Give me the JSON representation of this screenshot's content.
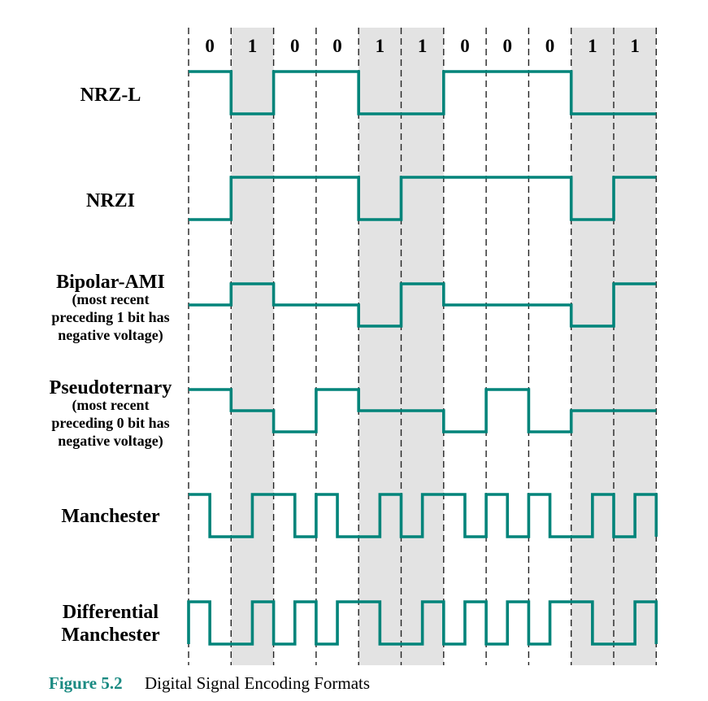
{
  "bits": [
    "0",
    "1",
    "0",
    "0",
    "1",
    "1",
    "0",
    "0",
    "0",
    "1",
    "1"
  ],
  "colors": {
    "wave": "#00847a",
    "band": "#e3e3e3",
    "caption_accent": "#1a8a82"
  },
  "rows": [
    {
      "id": "nrz-l",
      "label": "NRZ-L",
      "sub": []
    },
    {
      "id": "nrzi",
      "label": "NRZI",
      "sub": []
    },
    {
      "id": "bipolar-ami",
      "label": "Bipolar-AMI",
      "sub": [
        "(most recent",
        "preceding 1 bit has",
        "negative voltage)"
      ]
    },
    {
      "id": "pseudoternary",
      "label": "Pseudoternary",
      "sub": [
        "(most recent",
        "preceding 0 bit has",
        "negative voltage)"
      ]
    },
    {
      "id": "manchester",
      "label": "Manchester",
      "sub": []
    },
    {
      "id": "diff-manchester",
      "label": "Differential",
      "sub": [],
      "label2": "Manchester"
    }
  ],
  "caption": {
    "number": "Figure 5.2",
    "text": "Digital Signal Encoding Formats"
  }
}
